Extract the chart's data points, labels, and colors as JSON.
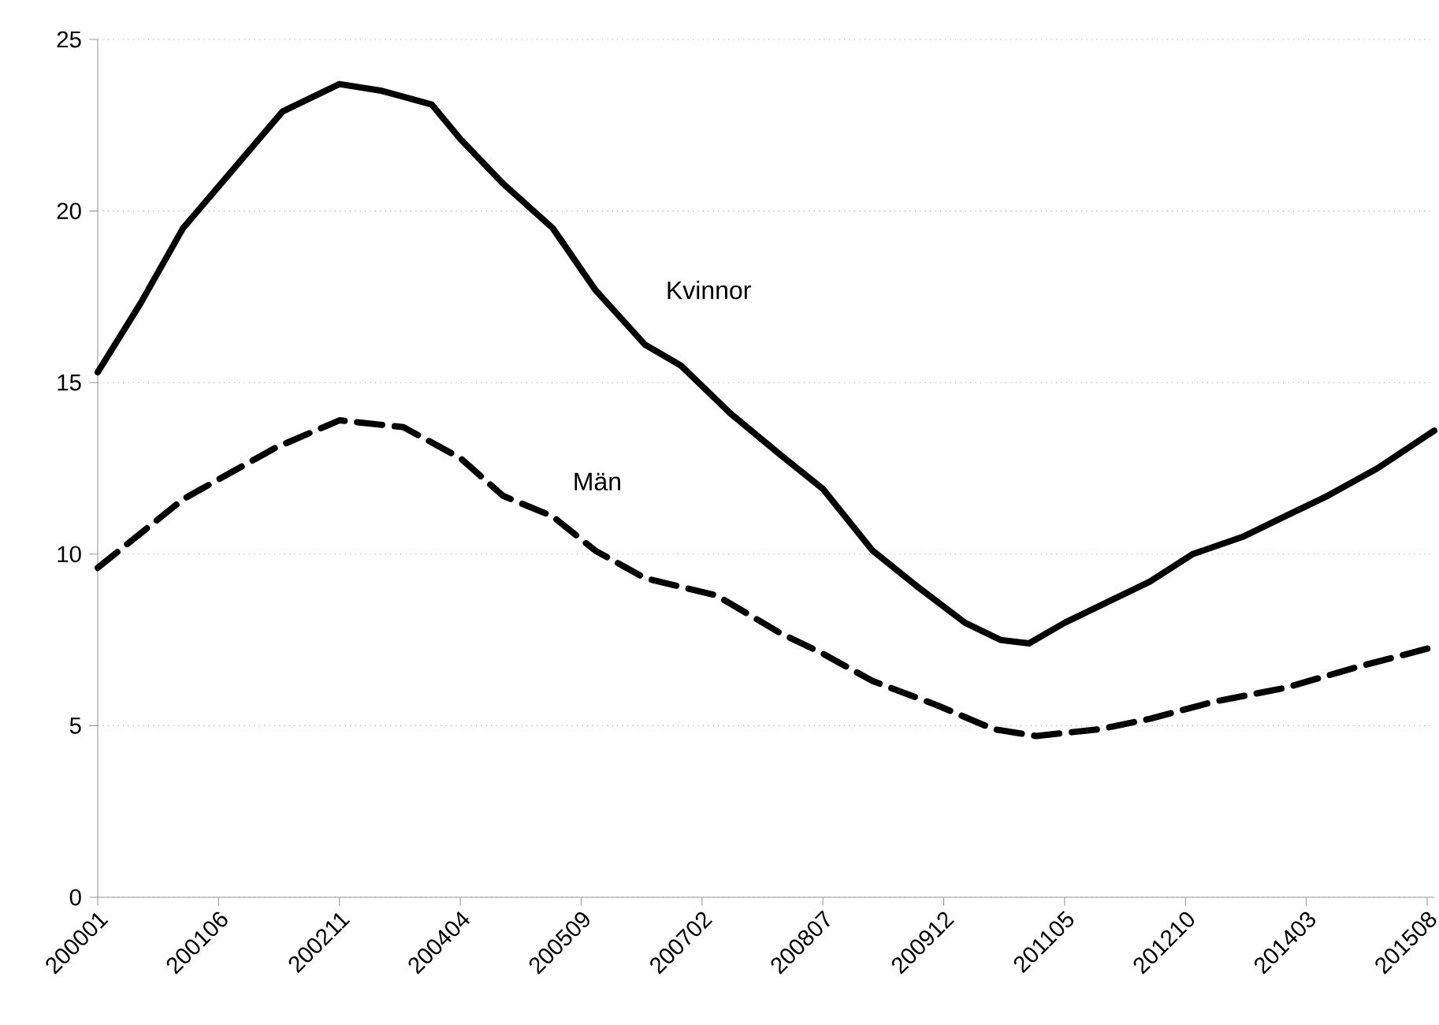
{
  "chart_data": {
    "type": "line",
    "xlim": [
      "2000-01",
      "2015-09"
    ],
    "xticks": [
      {
        "value": "2000-01",
        "label": "200001"
      },
      {
        "value": "2001-06",
        "label": "200106"
      },
      {
        "value": "2002-11",
        "label": "200211"
      },
      {
        "value": "2004-04",
        "label": "200404"
      },
      {
        "value": "2005-09",
        "label": "200509"
      },
      {
        "value": "2007-02",
        "label": "200702"
      },
      {
        "value": "2008-07",
        "label": "200807"
      },
      {
        "value": "2009-12",
        "label": "200912"
      },
      {
        "value": "2011-05",
        "label": "201105"
      },
      {
        "value": "2012-10",
        "label": "201210"
      },
      {
        "value": "2014-03",
        "label": "201403"
      },
      {
        "value": "2015-08",
        "label": "201508"
      }
    ],
    "ylim": [
      0,
      25
    ],
    "yticks": [
      0,
      5,
      10,
      15,
      20,
      25
    ],
    "grid": "y",
    "legend": false,
    "series": [
      {
        "name": "Kvinnor",
        "color": "#000000",
        "line_style": "solid",
        "x": [
          "2000-01",
          "2000-07",
          "2001-01",
          "2001-08",
          "2002-03",
          "2002-11",
          "2003-05",
          "2003-12",
          "2004-04",
          "2004-10",
          "2005-05",
          "2005-11",
          "2006-06",
          "2006-11",
          "2007-06",
          "2008-01",
          "2008-07",
          "2009-02",
          "2009-08",
          "2010-03",
          "2010-08",
          "2010-12",
          "2011-05",
          "2011-10",
          "2012-05",
          "2012-11",
          "2013-06",
          "2013-12",
          "2014-06",
          "2015-01",
          "2015-09"
        ],
        "values": [
          15.3,
          17.3,
          19.5,
          21.2,
          22.9,
          23.7,
          23.5,
          23.1,
          22.1,
          20.8,
          19.5,
          17.7,
          16.1,
          15.5,
          14.1,
          12.9,
          11.9,
          10.1,
          9.1,
          8.0,
          7.5,
          7.4,
          8.0,
          8.5,
          9.2,
          10.0,
          10.5,
          11.1,
          11.7,
          12.5,
          13.6
        ]
      },
      {
        "name": "Män",
        "color": "#000000",
        "line_style": "dashed",
        "x": [
          "2000-01",
          "2001-01",
          "2002-02",
          "2002-11",
          "2003-08",
          "2004-04",
          "2004-10",
          "2005-05",
          "2005-11",
          "2006-06",
          "2007-04",
          "2008-01",
          "2008-07",
          "2009-02",
          "2009-11",
          "2010-07",
          "2011-01",
          "2011-10",
          "2012-05",
          "2013-02",
          "2013-12",
          "2014-10",
          "2015-09"
        ],
        "values": [
          9.6,
          11.6,
          13.1,
          13.9,
          13.7,
          12.8,
          11.7,
          11.1,
          10.1,
          9.3,
          8.8,
          7.7,
          7.1,
          6.3,
          5.6,
          4.9,
          4.7,
          4.9,
          5.2,
          5.7,
          6.1,
          6.7,
          7.3
        ]
      }
    ]
  }
}
